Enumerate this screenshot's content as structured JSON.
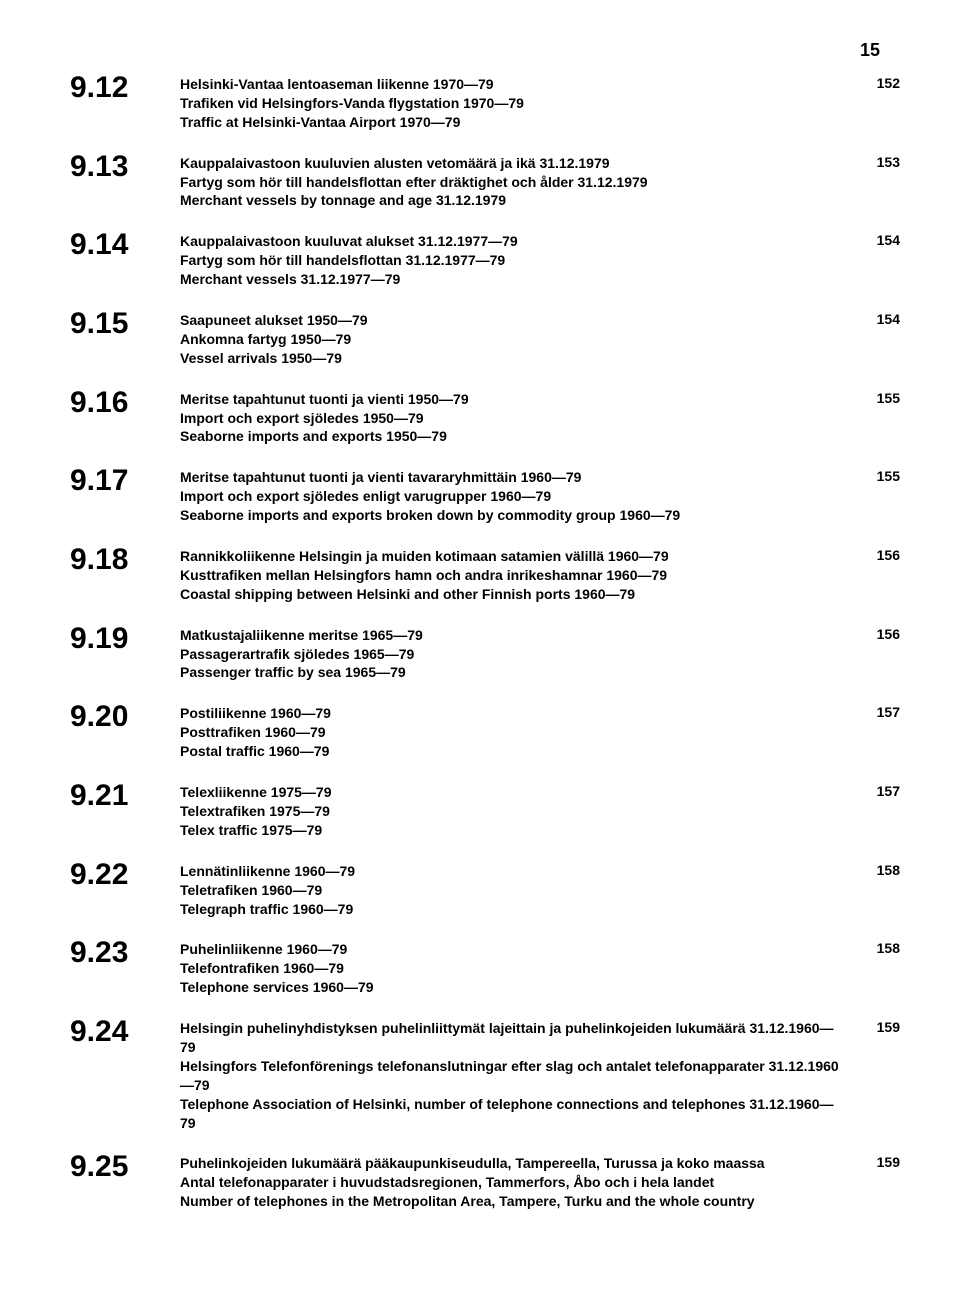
{
  "page_number_top": "15",
  "entries": [
    {
      "num": "9.12",
      "lines": [
        "Helsinki-Vantaa lentoaseman liikenne 1970—79",
        "Trafiken vid Helsingfors-Vanda flygstation 1970—79",
        "Traffic at Helsinki-Vantaa Airport 1970—79"
      ],
      "page": "152"
    },
    {
      "num": "9.13",
      "lines": [
        "Kauppalaivastoon kuuluvien alusten vetomäärä ja ikä 31.12.1979",
        "Fartyg som hör till handelsflottan efter dräktighet och ålder 31.12.1979",
        "Merchant vessels by tonnage and age 31.12.1979"
      ],
      "page": "153"
    },
    {
      "num": "9.14",
      "lines": [
        "Kauppalaivastoon kuuluvat alukset 31.12.1977—79",
        "Fartyg som hör till handelsflottan 31.12.1977—79",
        "Merchant vessels 31.12.1977—79"
      ],
      "page": "154"
    },
    {
      "num": "9.15",
      "lines": [
        "Saapuneet alukset 1950—79",
        "Ankomna fartyg 1950—79",
        "Vessel arrivals 1950—79"
      ],
      "page": "154"
    },
    {
      "num": "9.16",
      "lines": [
        "Meritse tapahtunut tuonti ja vienti 1950—79",
        "Import och export sjöledes 1950—79",
        "Seaborne imports and exports 1950—79"
      ],
      "page": "155"
    },
    {
      "num": "9.17",
      "lines": [
        "Meritse tapahtunut tuonti ja vienti tavararyhmittäin 1960—79",
        "Import och export sjöledes enligt varugrupper 1960—79",
        "Seaborne imports and exports broken down by commodity group 1960—79"
      ],
      "page": "155"
    },
    {
      "num": "9.18",
      "lines": [
        "Rannikkoliikenne Helsingin ja muiden kotimaan satamien välillä 1960—79",
        "Kusttrafiken mellan Helsingfors hamn och andra inrikeshamnar 1960—79",
        "Coastal shipping between Helsinki and other Finnish ports 1960—79"
      ],
      "page": "156"
    },
    {
      "num": "9.19",
      "lines": [
        "Matkustajaliikenne meritse 1965—79",
        "Passagerartrafik sjöledes 1965—79",
        "Passenger traffic by sea 1965—79"
      ],
      "page": "156"
    },
    {
      "num": "9.20",
      "lines": [
        "Postiliikenne 1960—79",
        "Posttrafiken 1960—79",
        "Postal traffic 1960—79"
      ],
      "page": "157"
    },
    {
      "num": "9.21",
      "lines": [
        "Telexliikenne 1975—79",
        "Telextrafiken 1975—79",
        "Telex traffic 1975—79"
      ],
      "page": "157"
    },
    {
      "num": "9.22",
      "lines": [
        "Lennätinliikenne 1960—79",
        "Teletrafiken 1960—79",
        "Telegraph traffic 1960—79"
      ],
      "page": "158"
    },
    {
      "num": "9.23",
      "lines": [
        "Puhelinliikenne 1960—79",
        "Telefontrafiken 1960—79",
        "Telephone services 1960—79"
      ],
      "page": "158"
    },
    {
      "num": "9.24",
      "lines": [
        "Helsingin puhelinyhdistyksen puhelinliittymät lajeittain ja puhelinkojeiden lukumäärä 31.12.1960—79",
        "Helsingfors Telefonförenings telefonanslutningar efter slag och antalet telefonapparater 31.12.1960—79",
        "Telephone Association of Helsinki, number of telephone connections and telephones 31.12.1960—79"
      ],
      "page": "159"
    },
    {
      "num": "9.25",
      "lines": [
        "Puhelinkojeiden lukumäärä pääkaupunkiseudulla, Tampereella, Turussa ja koko maassa",
        "Antal telefonapparater i huvudstadsregionen, Tammerfors, Åbo och i hela landet",
        "Number of telephones in the Metropolitan Area, Tampere, Turku and the whole country"
      ],
      "page": "159"
    }
  ]
}
